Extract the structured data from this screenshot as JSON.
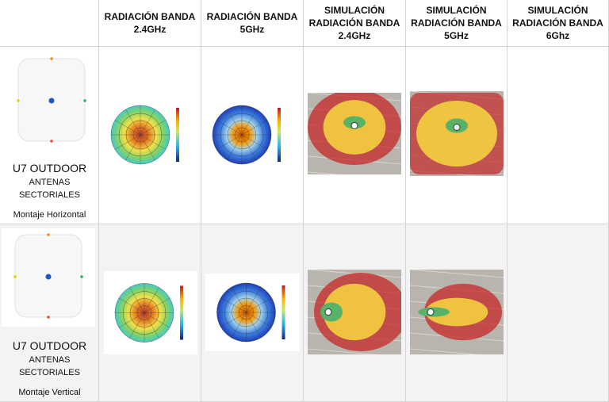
{
  "header": {
    "columns": [
      {
        "lines": [
          "RADIACIÓN BANDA",
          "2.4GHz"
        ]
      },
      {
        "lines": [
          "RADIACIÓN BANDA",
          "5GHz"
        ]
      },
      {
        "lines": [
          "SIMULACIÓN",
          "RADIACIÓN BANDA",
          "2.4GHz"
        ]
      },
      {
        "lines": [
          "SIMULACIÓN",
          "RADIACIÓN BANDA",
          "5GHz"
        ]
      },
      {
        "lines": [
          "SIMULACIÓN",
          "RADIACIÓN BANDA",
          "6Ghz"
        ]
      }
    ]
  },
  "rows": [
    {
      "model": "U7 OUTDOOR",
      "antenna": [
        "ANTENAS",
        "SECTORIALES"
      ],
      "mount": "Montaje Horizontal"
    },
    {
      "model": "U7 OUTDOOR",
      "antenna": [
        "ANTENAS",
        "SECTORIALES"
      ],
      "mount": "Montaje Vertical"
    }
  ]
}
